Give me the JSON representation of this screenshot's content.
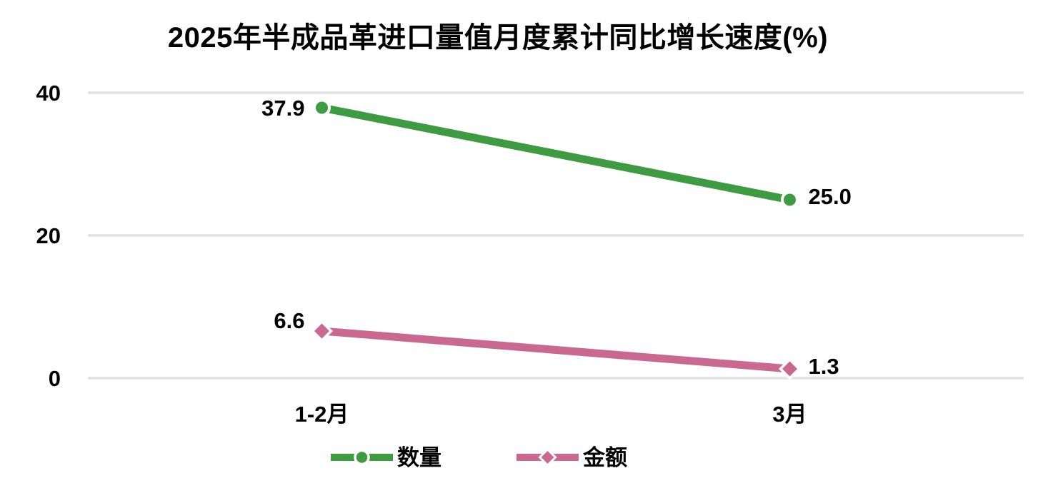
{
  "chart_data": {
    "type": "line",
    "title": "2025年半成品革进口量值月度累计同比增长速度(%)",
    "categories": [
      "1-2月",
      "3月"
    ],
    "series": [
      {
        "name": "数量",
        "color": "#3E9B41",
        "marker": "circle",
        "values": [
          37.9,
          25.0
        ],
        "data_labels": [
          "37.9",
          "25.0"
        ]
      },
      {
        "name": "金额",
        "color": "#C9698F",
        "marker": "diamond",
        "values": [
          6.6,
          1.3
        ],
        "data_labels": [
          "6.6",
          "1.3"
        ]
      }
    ],
    "xlabel": "",
    "ylabel": "",
    "ylim": [
      0,
      40
    ],
    "yticks": [
      0,
      20,
      40
    ],
    "grid": true,
    "gridline_color": "#E2E2E2",
    "legend_position": "bottom",
    "text_color": "#000000",
    "background": "#FFFFFF"
  }
}
